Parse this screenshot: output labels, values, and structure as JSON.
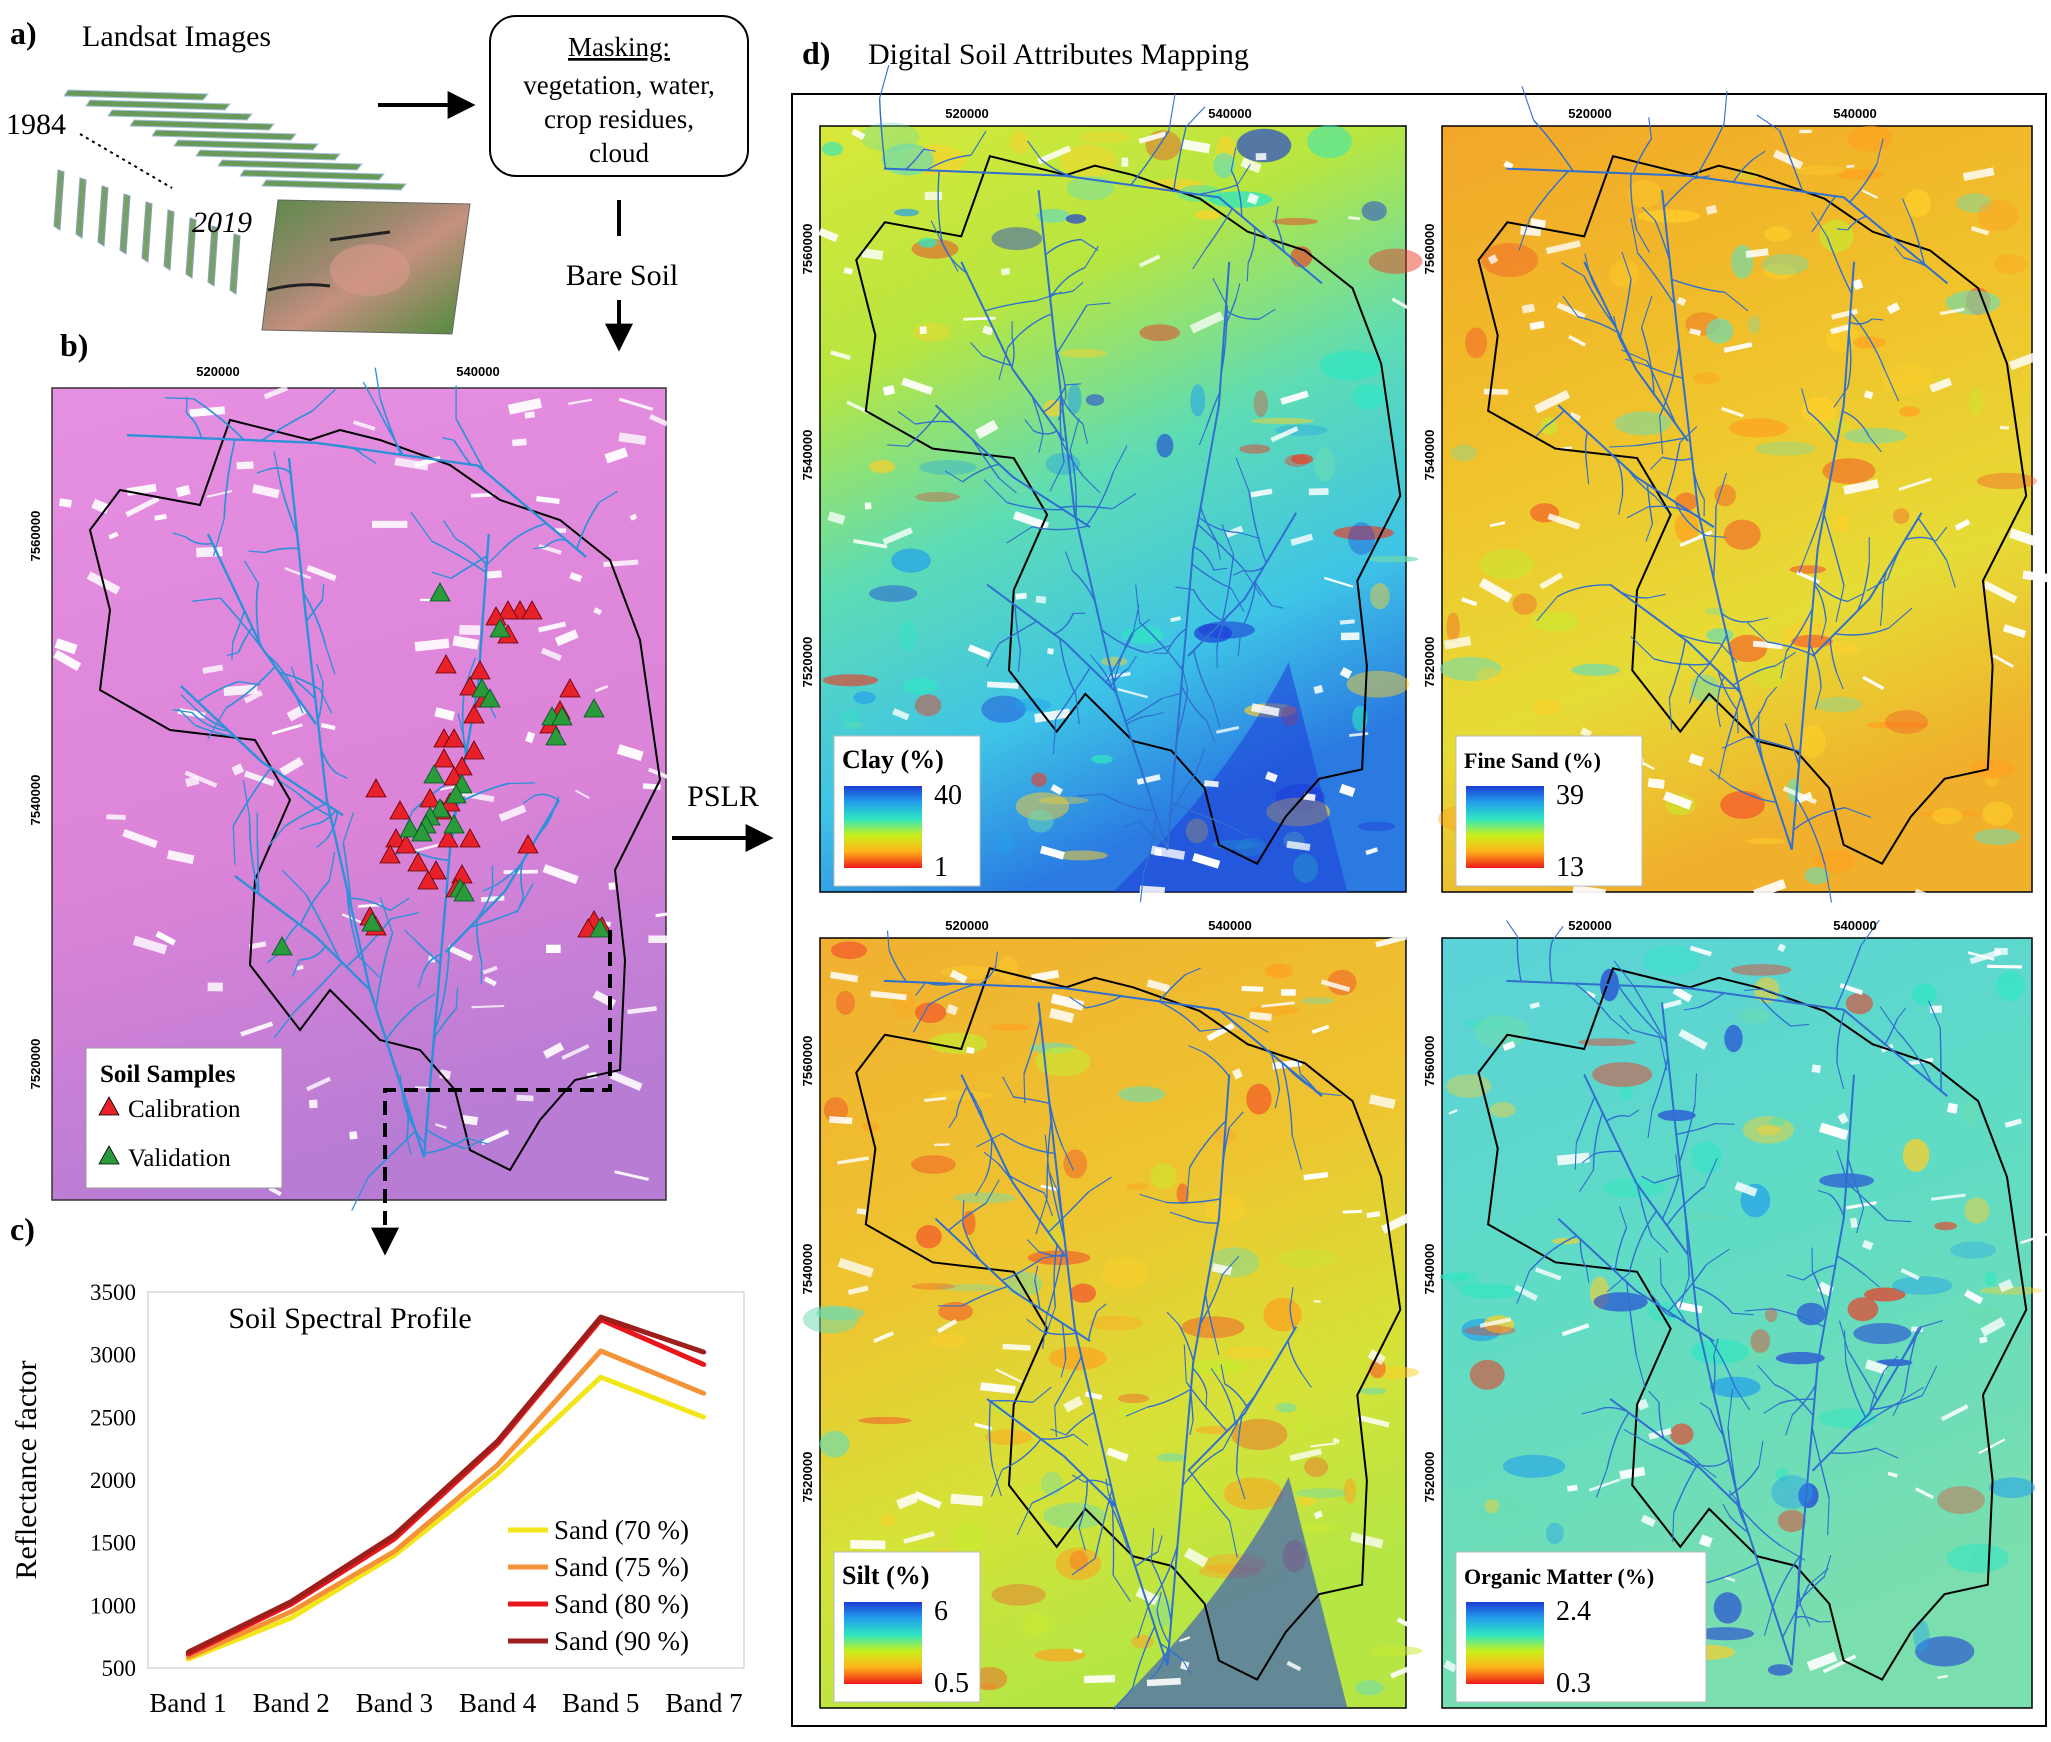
{
  "panels": {
    "a": {
      "letter": "a)",
      "title": "Landsat Images",
      "year_start": "1984",
      "year_end": "2019"
    },
    "b": {
      "letter": "b)"
    },
    "c": {
      "letter": "c)"
    },
    "d": {
      "letter": "d)",
      "title": "Digital Soil Attributes Mapping"
    }
  },
  "masking": {
    "title": "Masking:",
    "lines": [
      "vegetation, water,",
      "crop residues,",
      "cloud"
    ]
  },
  "flow": {
    "bare_soil": "Bare Soil",
    "pslr": "PSLR"
  },
  "sample_map": {
    "x_ticks": [
      "520000",
      "540000"
    ],
    "y_ticks": [
      "7560000",
      "7540000",
      "7520000"
    ],
    "legend": {
      "title": "Soil Samples",
      "calibration": "Calibration",
      "validation": "Validation"
    },
    "colors": {
      "calibration": "#e8202a",
      "validation": "#2a9a3a",
      "background": "#e088dc",
      "stream": "#2e90d8"
    }
  },
  "maps": [
    {
      "id": "clay",
      "label": "Clay (%)",
      "max": "40",
      "min": "1",
      "x_ticks": [
        "520000",
        "540000"
      ],
      "y_ticks": [
        "7560000",
        "7540000",
        "7520000"
      ],
      "palette": "clay"
    },
    {
      "id": "fine-sand",
      "label": "Fine Sand (%)",
      "max": "39",
      "min": "13",
      "x_ticks": [
        "520000",
        "540000"
      ],
      "y_ticks": [
        "7560000",
        "7540000",
        "7520000"
      ],
      "palette": "sand"
    },
    {
      "id": "silt",
      "label": "Silt (%)",
      "max": "6",
      "min": "0.5",
      "x_ticks": [
        "520000",
        "540000"
      ],
      "y_ticks": [
        "7560000",
        "7540000",
        "7520000"
      ],
      "palette": "silt"
    },
    {
      "id": "organic-matter",
      "label": "Organic Matter (%)",
      "max": "2.4",
      "min": "0.3",
      "x_ticks": [
        "520000",
        "540000"
      ],
      "y_ticks": [
        "7560000",
        "7540000",
        "7520000"
      ],
      "palette": "om"
    }
  ],
  "chart_data": {
    "type": "line",
    "title": "Soil Spectral Profile",
    "xlabel": "",
    "ylabel": "Reflectance factor",
    "categories": [
      "Band 1",
      "Band 2",
      "Band 3",
      "Band 4",
      "Band 5",
      "Band 7"
    ],
    "ylim": [
      500,
      3500
    ],
    "yticks": [
      500,
      1000,
      1500,
      2000,
      2500,
      3000,
      3500
    ],
    "legend_position": "bottom-right",
    "grid": false,
    "series": [
      {
        "name": "Sand (70 %)",
        "color": "#f2e61a",
        "values": [
          570,
          900,
          1400,
          2050,
          2820,
          2500
        ]
      },
      {
        "name": "Sand (75 %)",
        "color": "#f39237",
        "values": [
          585,
          950,
          1430,
          2120,
          3030,
          2690
        ]
      },
      {
        "name": "Sand (80 %)",
        "color": "#e8161c",
        "values": [
          610,
          1010,
          1530,
          2290,
          3280,
          2920
        ]
      },
      {
        "name": "Sand (90 %)",
        "color": "#9c1f1c",
        "values": [
          625,
          1030,
          1560,
          2310,
          3300,
          3020
        ]
      }
    ]
  }
}
